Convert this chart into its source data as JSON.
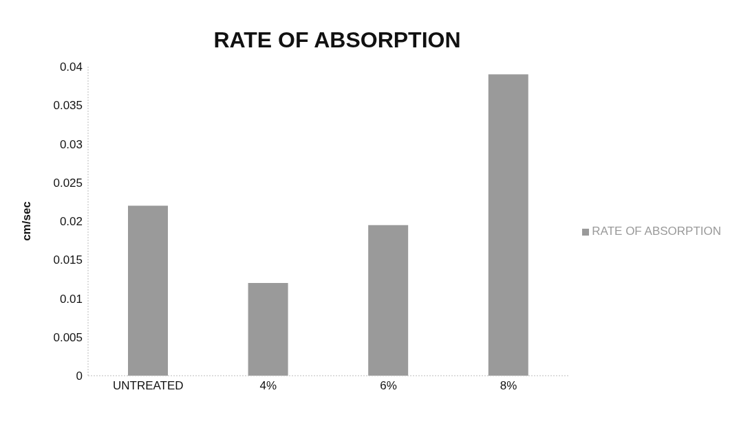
{
  "chart_data": {
    "type": "bar",
    "title": "RATE OF ABSORPTION",
    "ylabel": "cm/sec",
    "categories": [
      "UNTREATED",
      "4%",
      "6%",
      "8%"
    ],
    "series": [
      {
        "name": "RATE OF ABSORPTION",
        "color": "#9a9a9a",
        "values": [
          0.022,
          0.012,
          0.0195,
          0.039
        ]
      }
    ],
    "ylim": [
      0,
      0.04
    ],
    "yticks": [
      0,
      0.005,
      0.01,
      0.015,
      0.02,
      0.025,
      0.03,
      0.035,
      0.04
    ],
    "grid": false,
    "legend": "right"
  }
}
